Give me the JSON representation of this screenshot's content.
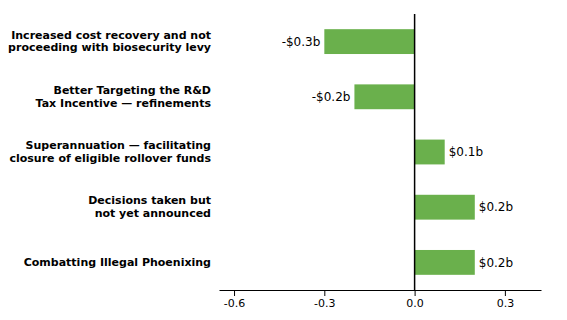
{
  "chart_data": {
    "type": "bar",
    "orientation": "horizontal",
    "categories": [
      "Combatting Illegal Phoenixing",
      "Decisions taken but\nnot yet announced",
      "Superannuation — facilitating\nclosure of eligible rollover funds",
      "Better Targeting the R&D\nTax Incentive — refinements",
      "Increased cost recovery and not\nproceeding with biosecurity levy"
    ],
    "values": [
      0.2,
      0.2,
      0.1,
      -0.2,
      -0.3
    ],
    "value_labels": [
      "$0.2b",
      "$0.2b",
      "$0.1b",
      "-$0.2b",
      "-$0.3b"
    ],
    "data_labels": true,
    "color": "#6ab04c",
    "xlim": [
      -0.65,
      0.42
    ],
    "xticks": [
      -0.6,
      -0.3,
      {
        "value": 0,
        "label": "0.0"
      },
      0.3
    ]
  }
}
